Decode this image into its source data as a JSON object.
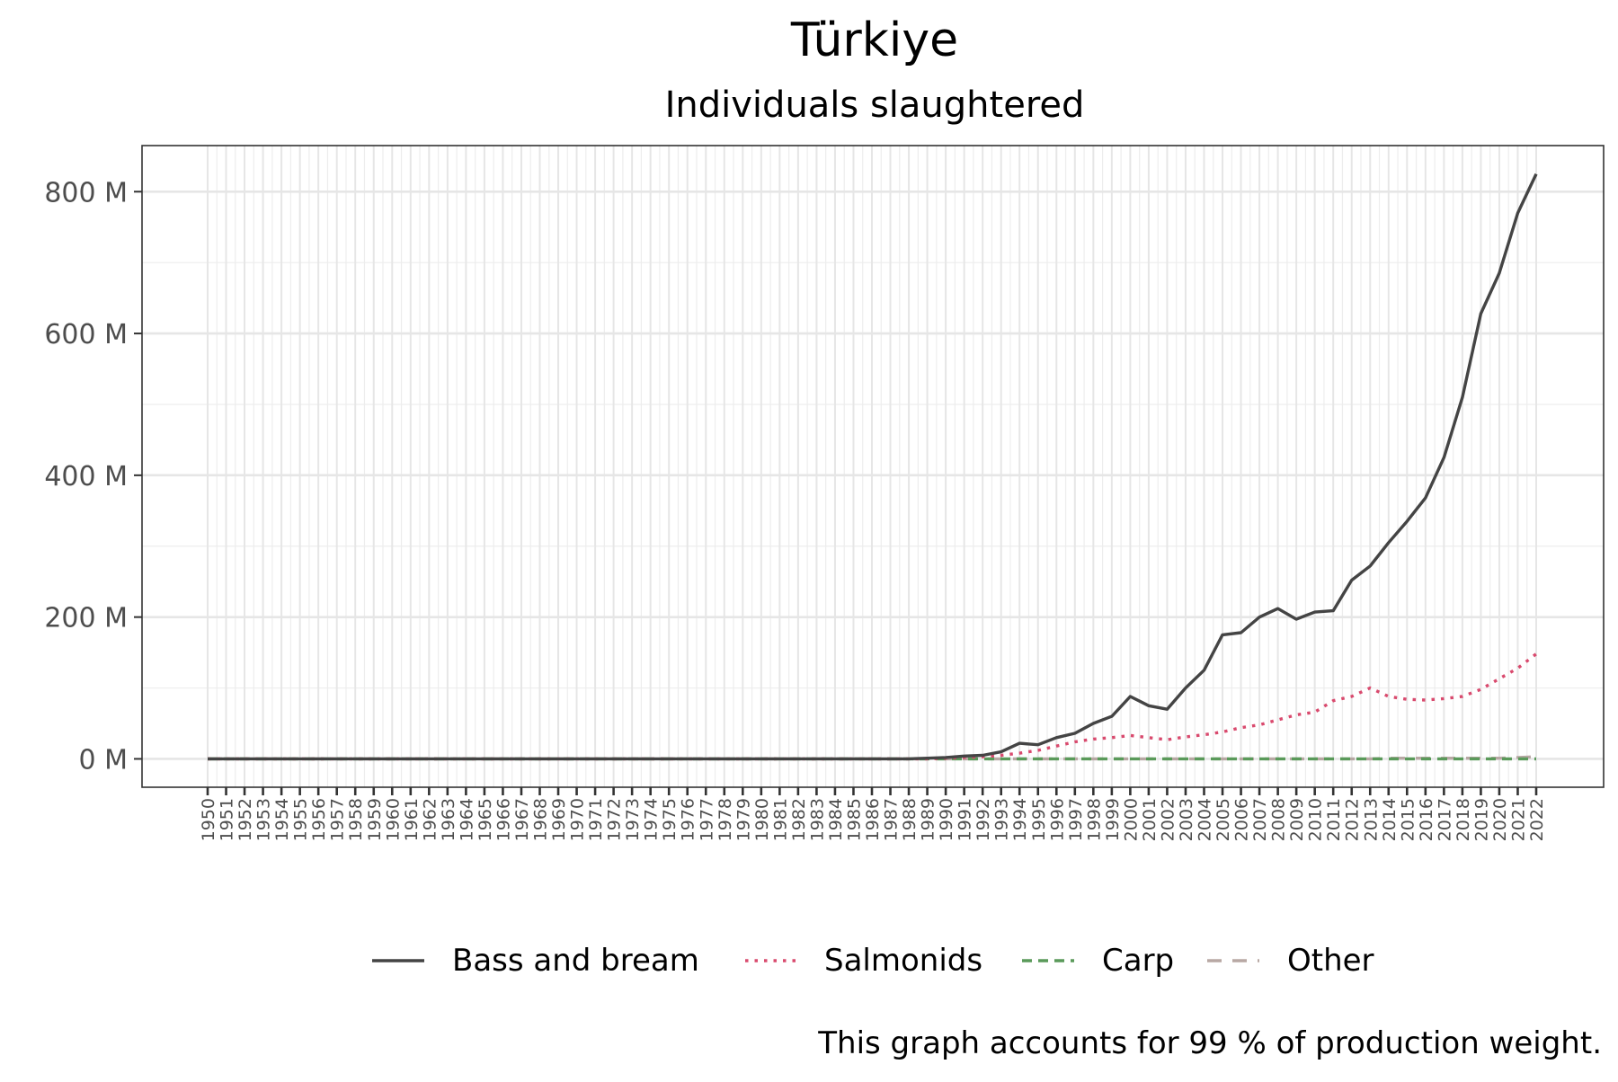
{
  "chart_data": {
    "type": "line",
    "title": "Türkiye",
    "subtitle": "Individuals slaughtered",
    "xlabel": "",
    "ylabel": "",
    "caption": "This graph accounts for 99 % of production weight.",
    "x": [
      1950,
      1951,
      1952,
      1953,
      1954,
      1955,
      1956,
      1957,
      1958,
      1959,
      1960,
      1961,
      1962,
      1963,
      1964,
      1965,
      1966,
      1967,
      1968,
      1969,
      1970,
      1971,
      1972,
      1973,
      1974,
      1975,
      1976,
      1977,
      1978,
      1979,
      1980,
      1981,
      1982,
      1983,
      1984,
      1985,
      1986,
      1987,
      1988,
      1989,
      1990,
      1991,
      1992,
      1993,
      1994,
      1995,
      1996,
      1997,
      1998,
      1999,
      2000,
      2001,
      2002,
      2003,
      2004,
      2005,
      2006,
      2007,
      2008,
      2009,
      2010,
      2011,
      2012,
      2013,
      2014,
      2015,
      2016,
      2017,
      2018,
      2019,
      2020,
      2021,
      2022
    ],
    "xlim": [
      1950,
      2022
    ],
    "ylim": [
      -40,
      865
    ],
    "yticks": [
      0,
      200,
      400,
      600,
      800
    ],
    "ytick_labels": [
      "0 M",
      "200 M",
      "400 M",
      "600 M",
      "800 M"
    ],
    "y_unit": "M",
    "grid": true,
    "legend_position": "bottom",
    "series": [
      {
        "name": "Bass and bream",
        "color": "#444444",
        "dash": "solid",
        "values": [
          0,
          0,
          0,
          0,
          0,
          0,
          0,
          0,
          0,
          0,
          0,
          0,
          0,
          0,
          0,
          0,
          0,
          0,
          0,
          0,
          0,
          0,
          0,
          0,
          0,
          0,
          0,
          0,
          0,
          0,
          0,
          0,
          0,
          0,
          0,
          0,
          0,
          0,
          0,
          1,
          2,
          4,
          5,
          10,
          22,
          20,
          30,
          36,
          50,
          60,
          88,
          75,
          70,
          100,
          125,
          175,
          178,
          200,
          212,
          197,
          207,
          209,
          252,
          272,
          305,
          335,
          368,
          425,
          510,
          628,
          685,
          770,
          825
        ]
      },
      {
        "name": "Salmonids",
        "color": "#d94a6e",
        "dash": "dotted",
        "values": [
          0,
          0,
          0,
          0,
          0,
          0,
          0,
          0,
          0,
          0,
          0,
          0,
          0,
          0,
          0,
          0,
          0,
          0,
          0,
          0,
          0,
          0,
          0,
          0,
          0,
          0,
          0,
          0,
          0,
          0,
          0,
          0,
          0,
          0,
          0,
          0,
          0,
          0,
          0,
          0,
          1,
          2,
          3,
          5,
          8,
          12,
          18,
          24,
          28,
          30,
          33,
          30,
          27,
          31,
          34,
          38,
          44,
          48,
          55,
          62,
          66,
          82,
          88,
          100,
          88,
          84,
          83,
          85,
          88,
          98,
          113,
          128,
          148
        ]
      },
      {
        "name": "Carp",
        "color": "#5a9a5a",
        "dash": "dashed",
        "values": [
          0,
          0,
          0,
          0,
          0,
          0,
          0,
          0,
          0,
          0,
          0,
          0,
          0,
          0,
          0,
          0,
          0,
          0,
          0,
          0,
          0,
          0,
          0,
          0,
          0,
          0,
          0,
          0,
          0,
          0,
          0,
          0,
          0,
          0,
          0,
          0,
          0,
          0,
          0,
          0,
          0,
          0,
          0,
          0,
          0,
          0,
          0,
          0,
          0,
          0,
          0,
          0,
          0,
          0,
          0,
          0,
          0,
          0,
          0,
          0,
          0,
          0,
          0,
          0,
          0,
          0,
          0,
          0,
          0,
          0,
          0,
          0,
          0
        ]
      },
      {
        "name": "Other",
        "color": "#b8a8a4",
        "dash": "longdash",
        "values": [
          0,
          0,
          0,
          0,
          0,
          0,
          0,
          0,
          0,
          0,
          0,
          0,
          0,
          0,
          0,
          0,
          0,
          0,
          0,
          0,
          0,
          0,
          0,
          0,
          0,
          0,
          0,
          0,
          0,
          0,
          0,
          0,
          0,
          0,
          0,
          0,
          0,
          0,
          0,
          0,
          0,
          0,
          0,
          0,
          0,
          0,
          0,
          0,
          0,
          0,
          0,
          0,
          0,
          0,
          0,
          0,
          0,
          0,
          0,
          0,
          0,
          0,
          0,
          0,
          1,
          1,
          1,
          1,
          1,
          1,
          1,
          2,
          3
        ]
      }
    ]
  }
}
